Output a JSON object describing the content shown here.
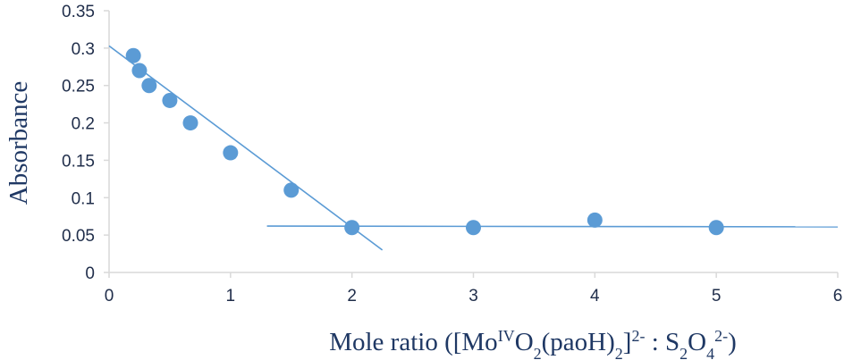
{
  "chart_data": {
    "type": "scatter",
    "title": "",
    "xlabel": "Mole ratio ([MoIVO2(paoH)2]2- : S2O42-)",
    "xlabel_parts": [
      {
        "text": "Mole ratio ([Mo",
        "style": "normal"
      },
      {
        "text": "IV",
        "style": "sup"
      },
      {
        "text": "O",
        "style": "normal"
      },
      {
        "text": "2",
        "style": "sub"
      },
      {
        "text": "(paoH)",
        "style": "normal"
      },
      {
        "text": "2",
        "style": "sub"
      },
      {
        "text": "]",
        "style": "normal"
      },
      {
        "text": "2-",
        "style": "sup"
      },
      {
        "text": " : S",
        "style": "normal"
      },
      {
        "text": "2",
        "style": "sub"
      },
      {
        "text": "O",
        "style": "normal"
      },
      {
        "text": "4",
        "style": "sub"
      },
      {
        "text": "2-",
        "style": "sup"
      },
      {
        "text": ")",
        "style": "normal"
      }
    ],
    "ylabel": "Absorbance",
    "xlim": [
      0,
      6
    ],
    "ylim": [
      0,
      0.35
    ],
    "x_ticks": [
      "0",
      "1",
      "2",
      "3",
      "4",
      "5",
      "6"
    ],
    "y_ticks": [
      "0",
      "0.05",
      "0.1",
      "0.15",
      "0.2",
      "0.25",
      "0.3",
      "0.35"
    ],
    "grid": false,
    "series": [
      {
        "x": [
          0.2,
          0.25,
          0.33,
          0.5,
          0.67,
          1,
          1.5,
          2,
          3,
          4,
          5
        ],
        "y": [
          0.29,
          0.27,
          0.25,
          0.23,
          0.2,
          0.16,
          0.11,
          0.06,
          0.06,
          0.07,
          0.06
        ]
      }
    ],
    "trend_lines": [
      {
        "x": [
          0,
          2.25
        ],
        "y": [
          0.303,
          0.03
        ]
      },
      {
        "x": [
          1.3,
          6
        ],
        "y": [
          0.062,
          0.061
        ]
      }
    ],
    "colors": {
      "marker": "#5b9bd5",
      "line": "#5b9bd5",
      "axis": "#d9d9d9",
      "text": "#1f3864"
    }
  }
}
